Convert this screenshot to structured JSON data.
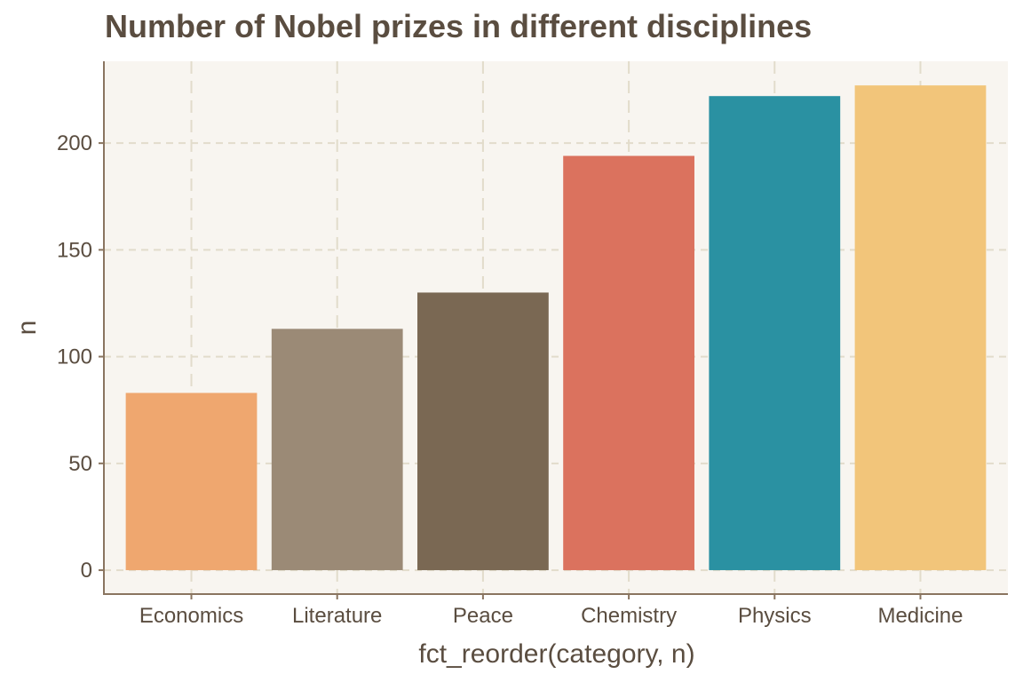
{
  "chart_data": {
    "type": "bar",
    "title": "Number of Nobel prizes in different disciplines",
    "xlabel": "fct_reorder(category, n)",
    "ylabel": "n",
    "categories": [
      "Economics",
      "Literature",
      "Peace",
      "Chemistry",
      "Physics",
      "Medicine"
    ],
    "values": [
      83,
      113,
      130,
      194,
      222,
      227
    ],
    "colors": [
      "#EFA76F",
      "#9B8A76",
      "#7A6853",
      "#DB725E",
      "#2A91A2",
      "#F2C57A"
    ],
    "yticks": [
      0,
      50,
      100,
      150,
      200
    ],
    "ylim": [
      -11.2,
      238.3
    ],
    "grid": true,
    "background": "#F8F5F0",
    "gridColor": "#E2DCCB",
    "axisColor": "#8A7560"
  }
}
